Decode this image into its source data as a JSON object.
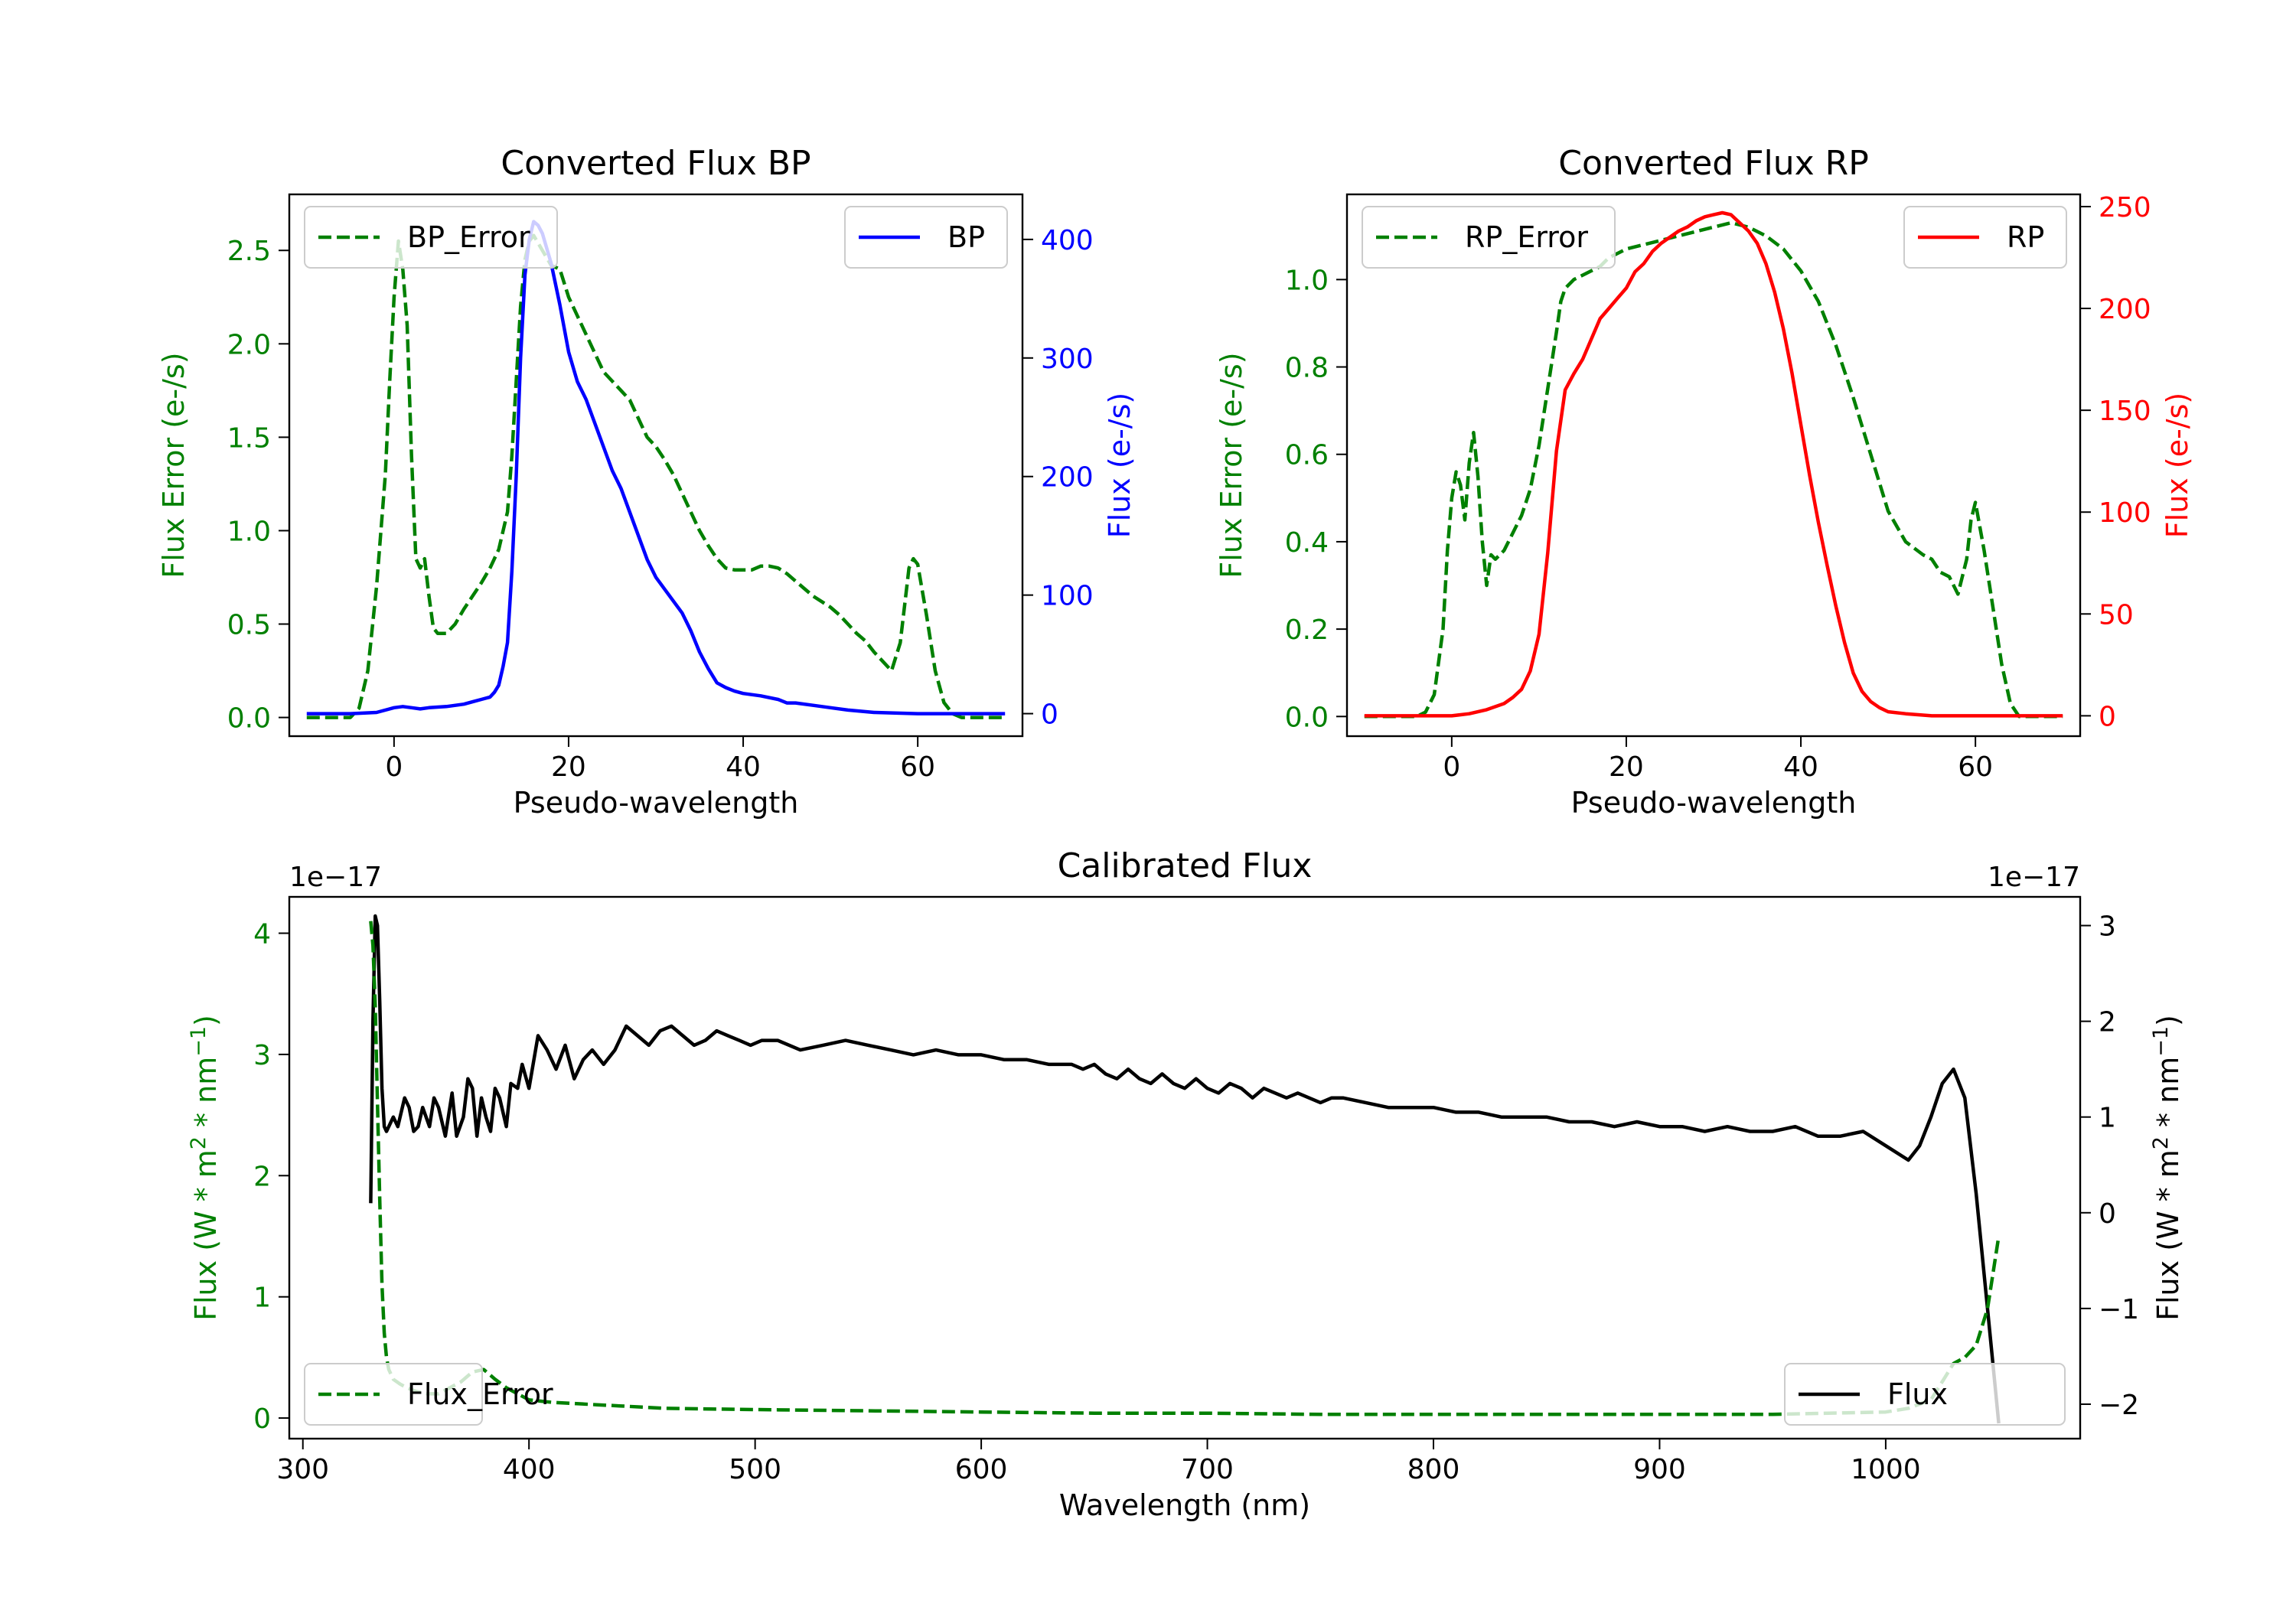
{
  "chart_data": [
    {
      "type": "line",
      "title": "Converted Flux BP",
      "xlabel": "Pseudo-wavelength",
      "ylabel_left": "Flux Error (e-/s)",
      "ylabel_right": "Flux (e-/s)",
      "xlim": [
        -12,
        72
      ],
      "ylim_left": [
        -0.1,
        2.8
      ],
      "ylim_right": [
        -19,
        438
      ],
      "xticks": [
        0,
        20,
        40,
        60
      ],
      "yticks_left": [
        0.0,
        0.5,
        1.0,
        1.5,
        2.0,
        2.5
      ],
      "yticks_right": [
        0,
        100,
        200,
        300,
        400
      ],
      "legend_left": "top-left",
      "legend_right": "top-right",
      "series": [
        {
          "name": "BP_Error",
          "axis": "left",
          "style": "dashed",
          "color": "#008000",
          "x": [
            -10,
            -5,
            -4,
            -3,
            -2,
            -1,
            -0.5,
            0,
            0.5,
            1,
            1.5,
            2,
            2.5,
            3,
            3.5,
            4,
            4.5,
            5,
            6,
            7,
            8,
            9,
            10,
            11,
            12,
            13,
            13.5,
            14,
            14.5,
            15,
            15.5,
            16,
            17,
            18,
            19,
            20,
            21,
            22,
            23,
            24,
            25,
            26,
            27,
            28,
            29,
            30,
            31,
            32,
            33,
            34,
            35,
            36,
            37,
            38,
            39,
            40,
            41,
            42,
            43,
            44,
            45,
            46,
            47,
            48,
            49,
            50,
            51,
            52,
            53,
            54,
            55,
            56,
            57,
            58,
            59,
            59.5,
            60,
            61,
            62,
            63,
            64,
            65,
            70
          ],
          "values": [
            0.0,
            0.0,
            0.05,
            0.25,
            0.7,
            1.3,
            1.8,
            2.25,
            2.55,
            2.4,
            2.1,
            1.4,
            0.85,
            0.8,
            0.85,
            0.65,
            0.48,
            0.45,
            0.45,
            0.5,
            0.58,
            0.65,
            0.72,
            0.8,
            0.9,
            1.1,
            1.4,
            1.8,
            2.2,
            2.45,
            2.55,
            2.58,
            2.5,
            2.42,
            2.4,
            2.25,
            2.15,
            2.05,
            1.95,
            1.85,
            1.8,
            1.75,
            1.7,
            1.6,
            1.5,
            1.45,
            1.38,
            1.3,
            1.2,
            1.1,
            1.0,
            0.92,
            0.85,
            0.8,
            0.79,
            0.79,
            0.79,
            0.81,
            0.81,
            0.8,
            0.77,
            0.73,
            0.69,
            0.65,
            0.62,
            0.59,
            0.55,
            0.5,
            0.45,
            0.41,
            0.35,
            0.3,
            0.25,
            0.4,
            0.8,
            0.85,
            0.82,
            0.55,
            0.25,
            0.08,
            0.02,
            0.0,
            0.0
          ]
        },
        {
          "name": "BP",
          "axis": "right",
          "style": "solid",
          "color": "#0000ff",
          "x": [
            -10,
            -5,
            -2,
            0,
            1,
            2,
            3,
            4,
            6,
            8,
            9,
            10,
            11,
            11.5,
            12,
            12.5,
            13,
            13.5,
            14,
            14.5,
            15,
            15.5,
            16,
            16.5,
            17,
            18,
            19,
            20,
            21,
            22,
            23,
            24,
            25,
            26,
            27,
            28,
            29,
            30,
            31,
            32,
            33,
            34,
            35,
            36,
            37,
            38,
            39,
            40,
            42,
            44,
            45,
            46,
            48,
            50,
            52,
            55,
            60,
            65,
            70
          ],
          "values": [
            0,
            0,
            1,
            5,
            6,
            5,
            4,
            5,
            6,
            8,
            10,
            12,
            14,
            18,
            24,
            40,
            60,
            120,
            200,
            300,
            370,
            400,
            415,
            412,
            405,
            380,
            345,
            305,
            280,
            265,
            245,
            225,
            205,
            190,
            170,
            150,
            130,
            115,
            105,
            95,
            85,
            70,
            52,
            38,
            26,
            22,
            19,
            17,
            15,
            12,
            9,
            9,
            7,
            5,
            3,
            1,
            0,
            0,
            0
          ]
        }
      ]
    },
    {
      "type": "line",
      "title": "Converted Flux RP",
      "xlabel": "Pseudo-wavelength",
      "ylabel_left": "Flux Error (e-/s)",
      "ylabel_right": "Flux (e-/s)",
      "xlim": [
        -12,
        72
      ],
      "ylim_left": [
        -0.045,
        1.195
      ],
      "ylim_right": [
        -10,
        256
      ],
      "xticks": [
        0,
        20,
        40,
        60
      ],
      "yticks_left": [
        0.0,
        0.2,
        0.4,
        0.6,
        0.8,
        1.0
      ],
      "yticks_right": [
        0,
        50,
        100,
        150,
        200,
        250
      ],
      "legend_left": "top-left",
      "legend_right": "top-right",
      "series": [
        {
          "name": "RP_Error",
          "axis": "left",
          "style": "dashed",
          "color": "#008000",
          "x": [
            -10,
            -4,
            -3,
            -2,
            -1,
            -0.5,
            0,
            0.5,
            1,
            1.5,
            2,
            2.5,
            3,
            3.5,
            4,
            4.5,
            5,
            6,
            7,
            8,
            9,
            10,
            11,
            12,
            12.5,
            13,
            14,
            15,
            16,
            17,
            18,
            20,
            22,
            24,
            26,
            28,
            30,
            32,
            34,
            36,
            38,
            40,
            42,
            44,
            46,
            48,
            50,
            52,
            54,
            55,
            56,
            57,
            58,
            59,
            59.5,
            60,
            61,
            62,
            63,
            64,
            65,
            70
          ],
          "values": [
            0.0,
            0.0,
            0.01,
            0.05,
            0.2,
            0.38,
            0.5,
            0.56,
            0.53,
            0.45,
            0.58,
            0.65,
            0.55,
            0.4,
            0.3,
            0.37,
            0.36,
            0.38,
            0.42,
            0.46,
            0.52,
            0.62,
            0.75,
            0.88,
            0.95,
            0.98,
            1.0,
            1.01,
            1.02,
            1.03,
            1.05,
            1.07,
            1.08,
            1.09,
            1.1,
            1.11,
            1.12,
            1.13,
            1.12,
            1.1,
            1.07,
            1.02,
            0.95,
            0.85,
            0.73,
            0.6,
            0.47,
            0.4,
            0.37,
            0.36,
            0.33,
            0.32,
            0.28,
            0.36,
            0.45,
            0.49,
            0.38,
            0.25,
            0.12,
            0.03,
            0.0,
            0.0
          ]
        },
        {
          "name": "RP",
          "axis": "right",
          "style": "solid",
          "color": "#ff0000",
          "x": [
            -10,
            -4,
            0,
            2,
            4,
            6,
            7,
            8,
            9,
            10,
            11,
            12,
            13,
            14,
            15,
            16,
            17,
            18,
            19,
            20,
            21,
            22,
            23,
            24,
            25,
            26,
            27,
            28,
            29,
            30,
            31,
            32,
            33,
            34,
            35,
            36,
            37,
            38,
            39,
            40,
            41,
            42,
            43,
            44,
            45,
            46,
            47,
            48,
            49,
            50,
            52,
            55,
            60,
            65,
            70
          ],
          "values": [
            0,
            0,
            0,
            1,
            3,
            6,
            9,
            13,
            22,
            40,
            80,
            130,
            160,
            168,
            175,
            185,
            195,
            200,
            205,
            210,
            218,
            222,
            228,
            232,
            235,
            238,
            240,
            243,
            245,
            246,
            247,
            246,
            242,
            238,
            232,
            222,
            208,
            190,
            168,
            143,
            118,
            95,
            74,
            54,
            36,
            21,
            12,
            7,
            4,
            2,
            1,
            0,
            0,
            0,
            0
          ]
        }
      ]
    },
    {
      "type": "line",
      "title": "Calibrated Flux",
      "xlabel": "Wavelength (nm)",
      "ylabel_left_text": "Flux (W * m",
      "ylabel_right_text": "Flux (W * m",
      "ylabel_sup1": "2",
      "ylabel_mid": " * nm",
      "ylabel_sup2": "−1",
      "ylabel_close": ")",
      "multiplier_left": "1e−17",
      "multiplier_right": "1e−17",
      "xlim": [
        294,
        1086
      ],
      "ylim_left": [
        -0.17,
        4.3
      ],
      "ylim_right": [
        -2.36,
        3.3
      ],
      "xticks": [
        300,
        400,
        500,
        600,
        700,
        800,
        900,
        1000
      ],
      "yticks_left": [
        0,
        1,
        2,
        3,
        4
      ],
      "yticks_right": [
        -2,
        -1,
        0,
        1,
        2,
        3
      ],
      "yticklabels_right": [
        "−2",
        "−1",
        "0",
        "1",
        "2",
        "3"
      ],
      "legend_left": "bottom-left",
      "legend_right": "bottom-right",
      "series": [
        {
          "name": "Flux",
          "axis": "right",
          "style": "solid",
          "color": "#000000",
          "x": [
            330,
            331,
            332,
            333,
            334,
            335,
            336,
            337,
            338,
            340,
            342,
            345,
            347,
            349,
            351,
            353,
            356,
            358,
            360,
            363,
            366,
            368,
            371,
            373,
            375,
            377,
            379,
            381,
            383,
            385,
            387,
            390,
            392,
            395,
            397,
            400,
            404,
            408,
            412,
            416,
            420,
            424,
            428,
            433,
            438,
            443,
            448,
            453,
            458,
            463,
            468,
            473,
            478,
            483,
            488,
            493,
            498,
            503,
            510,
            520,
            530,
            540,
            550,
            560,
            570,
            580,
            590,
            600,
            610,
            620,
            630,
            640,
            645,
            650,
            655,
            660,
            665,
            670,
            675,
            680,
            685,
            690,
            695,
            700,
            705,
            710,
            715,
            720,
            725,
            730,
            735,
            740,
            745,
            750,
            755,
            760,
            770,
            780,
            790,
            800,
            810,
            820,
            830,
            840,
            850,
            860,
            870,
            880,
            890,
            900,
            910,
            920,
            930,
            940,
            950,
            960,
            970,
            980,
            990,
            1000,
            1010,
            1015,
            1020,
            1025,
            1030,
            1035,
            1040,
            1045,
            1050
          ],
          "values": [
            0.1,
            2.0,
            3.1,
            3.0,
            2.2,
            1.3,
            0.9,
            0.85,
            0.9,
            1.0,
            0.9,
            1.2,
            1.1,
            0.85,
            0.9,
            1.1,
            0.9,
            1.2,
            1.1,
            0.8,
            1.25,
            0.8,
            1.0,
            1.4,
            1.3,
            0.8,
            1.2,
            1.0,
            0.85,
            1.3,
            1.2,
            0.9,
            1.35,
            1.3,
            1.55,
            1.3,
            1.85,
            1.7,
            1.5,
            1.75,
            1.4,
            1.6,
            1.7,
            1.55,
            1.7,
            1.95,
            1.85,
            1.75,
            1.9,
            1.95,
            1.85,
            1.75,
            1.8,
            1.9,
            1.85,
            1.8,
            1.75,
            1.8,
            1.8,
            1.7,
            1.75,
            1.8,
            1.75,
            1.7,
            1.65,
            1.7,
            1.65,
            1.65,
            1.6,
            1.6,
            1.55,
            1.55,
            1.5,
            1.55,
            1.45,
            1.4,
            1.5,
            1.4,
            1.35,
            1.45,
            1.35,
            1.3,
            1.4,
            1.3,
            1.25,
            1.35,
            1.3,
            1.2,
            1.3,
            1.25,
            1.2,
            1.25,
            1.2,
            1.15,
            1.2,
            1.2,
            1.15,
            1.1,
            1.1,
            1.1,
            1.05,
            1.05,
            1.0,
            1.0,
            1.0,
            0.95,
            0.95,
            0.9,
            0.95,
            0.9,
            0.9,
            0.85,
            0.9,
            0.85,
            0.85,
            0.9,
            0.8,
            0.8,
            0.85,
            0.7,
            0.55,
            0.7,
            1.0,
            1.35,
            1.5,
            1.2,
            0.2,
            -1.0,
            -2.2
          ]
        },
        {
          "name": "Flux_Error",
          "axis": "left",
          "style": "dashed",
          "color": "#008000",
          "x": [
            330,
            331,
            332,
            333,
            334,
            335,
            336,
            337,
            338,
            340,
            343,
            346,
            350,
            355,
            360,
            365,
            370,
            375,
            380,
            385,
            390,
            400,
            410,
            420,
            430,
            440,
            450,
            460,
            480,
            500,
            550,
            600,
            650,
            700,
            750,
            800,
            850,
            900,
            950,
            1000,
            1010,
            1020,
            1025,
            1030,
            1035,
            1040,
            1045,
            1050
          ],
          "values": [
            4.1,
            3.9,
            3.4,
            2.6,
            1.8,
            1.1,
            0.7,
            0.5,
            0.4,
            0.32,
            0.28,
            0.25,
            0.22,
            0.2,
            0.2,
            0.25,
            0.3,
            0.38,
            0.4,
            0.32,
            0.25,
            0.15,
            0.13,
            0.12,
            0.11,
            0.1,
            0.09,
            0.08,
            0.075,
            0.07,
            0.06,
            0.05,
            0.04,
            0.04,
            0.03,
            0.03,
            0.03,
            0.03,
            0.03,
            0.05,
            0.08,
            0.15,
            0.3,
            0.45,
            0.5,
            0.6,
            0.9,
            1.5
          ]
        }
      ]
    }
  ]
}
